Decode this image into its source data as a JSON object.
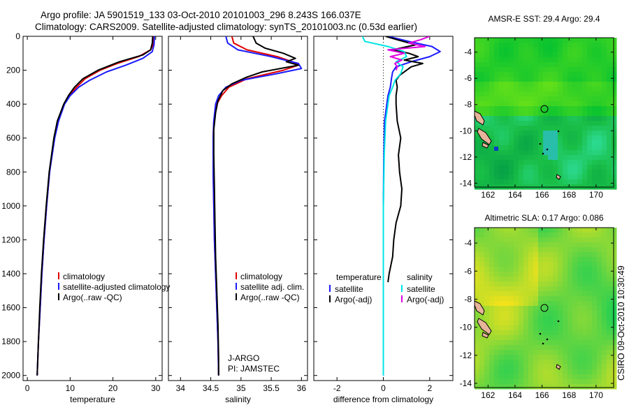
{
  "header": {
    "line1": "Argo profile: JA 5901519_133 03-Oct-2010 20101003_296 8.243S 166.037E",
    "line2": "Climatology: CARS2009. Satellite-adjusted climatology: synTS_20101003.nc (0.53d earlier)"
  },
  "side_label": "CSIRO 09-Oct-2010 10:30:49",
  "colors": {
    "climatology": "#e00000",
    "satellite": "#1a1aff",
    "argo": "#000000",
    "cyan": "#00e5e5",
    "magenta": "#e000e0",
    "land": "#e6b49a"
  },
  "chart_data": [
    {
      "id": "temperature",
      "type": "line",
      "xlabel": "temperature",
      "ylabel": "",
      "xlim": [
        -1,
        31.5
      ],
      "ylim": [
        0,
        2030
      ],
      "xticks": [
        0,
        10,
        20,
        30
      ],
      "yticks": [
        0,
        200,
        400,
        600,
        800,
        1000,
        1200,
        1400,
        1600,
        1800,
        2000
      ],
      "series": [
        {
          "name": "climatology",
          "color": "#e00000",
          "depth": [
            0,
            50,
            80,
            120,
            160,
            200,
            250,
            300,
            350,
            400,
            500,
            600,
            800,
            1000,
            1200,
            1400,
            1600,
            1800,
            2000
          ],
          "values": [
            29.5,
            29.4,
            28.8,
            26,
            21,
            17,
            13.5,
            11.5,
            9.8,
            8.6,
            7.2,
            6.3,
            5.2,
            4.5,
            3.9,
            3.4,
            3,
            2.6,
            2.3
          ]
        },
        {
          "name": "satellite-adjusted climatology",
          "color": "#1a1aff",
          "depth": [
            0,
            50,
            90,
            130,
            170,
            210,
            260,
            300,
            350,
            400,
            500,
            600,
            800,
            1000,
            1200,
            1400,
            1600,
            1800,
            2000
          ],
          "values": [
            29.7,
            29.6,
            29.2,
            27,
            23,
            18.5,
            14.5,
            12,
            10,
            8.7,
            7.3,
            6.4,
            5.2,
            4.5,
            3.9,
            3.4,
            3,
            2.6,
            2.3
          ]
        },
        {
          "name": "Argo(..raw -QC)",
          "color": "#000000",
          "depth": [
            0,
            40,
            80,
            110,
            150,
            200,
            250,
            300,
            350,
            400,
            500,
            600,
            800,
            1000,
            1200,
            1400,
            1600,
            1800,
            2000
          ],
          "values": [
            29.3,
            29.2,
            28.8,
            27,
            21.5,
            16.5,
            13,
            11,
            9.6,
            8.5,
            7,
            6.2,
            5.1,
            4.4,
            3.8,
            3.3,
            2.9,
            2.6,
            2.3
          ]
        }
      ],
      "legend": [
        "climatology",
        "satellite-adjusted climatology",
        "Argo(..raw -QC)"
      ]
    },
    {
      "id": "salinity",
      "type": "line",
      "xlabel": "salinity",
      "ylabel": "",
      "xlim": [
        33.8,
        36.1
      ],
      "ylim": [
        0,
        2030
      ],
      "xticks": [
        34,
        34.5,
        35,
        35.5,
        36
      ],
      "xticklabels": [
        "34",
        "34.5",
        "35",
        "35.5",
        "36"
      ],
      "annotation": [
        "J-ARGO",
        "PI: JAMSTEC"
      ],
      "series": [
        {
          "name": "climatology",
          "color": "#e00000",
          "depth": [
            0,
            40,
            80,
            120,
            150,
            170,
            200,
            250,
            300,
            350,
            400,
            500,
            600,
            800,
            1000,
            1200,
            1400,
            1600,
            1800,
            2000
          ],
          "values": [
            34.85,
            34.88,
            35.1,
            35.6,
            35.85,
            35.95,
            35.7,
            35.1,
            34.8,
            34.68,
            34.6,
            34.55,
            34.54,
            34.54,
            34.55,
            34.56,
            34.58,
            34.6,
            34.62,
            34.63
          ]
        },
        {
          "name": "satellite adj. clim.",
          "color": "#1a1aff",
          "depth": [
            0,
            40,
            80,
            120,
            160,
            190,
            220,
            260,
            300,
            350,
            400,
            500,
            600,
            800,
            1000,
            1200,
            1400,
            1600,
            1800,
            2000
          ],
          "values": [
            34.75,
            34.78,
            34.95,
            35.5,
            35.95,
            36.0,
            35.6,
            35.0,
            34.75,
            34.63,
            34.58,
            34.55,
            34.54,
            34.54,
            34.55,
            34.56,
            34.58,
            34.6,
            34.62,
            34.63
          ]
        },
        {
          "name": "Argo(..raw -QC)",
          "color": "#000000",
          "depth": [
            0,
            40,
            70,
            100,
            130,
            150,
            170,
            190,
            210,
            240,
            280,
            320,
            380,
            450,
            550,
            700,
            900,
            1100,
            1300,
            1500,
            1700,
            1900,
            2000
          ],
          "values": [
            35.2,
            35.25,
            35.4,
            35.7,
            35.9,
            35.75,
            35.95,
            35.65,
            35.35,
            35.1,
            34.85,
            34.7,
            34.62,
            34.58,
            34.55,
            34.55,
            34.56,
            34.57,
            34.58,
            34.6,
            34.62,
            34.63,
            34.63
          ]
        }
      ],
      "legend": [
        "climatology",
        "satellite adj. clim.",
        "Argo(..raw -QC)"
      ]
    },
    {
      "id": "difference",
      "type": "line",
      "xlabel": "difference from climatology",
      "ylabel": "",
      "xlim": [
        -3,
        3
      ],
      "ylim": [
        0,
        2030
      ],
      "xticks": [
        -2,
        0,
        2
      ],
      "legend_titles": [
        "temperature",
        "salinity"
      ],
      "series": [
        {
          "name": "temperature satellite",
          "color": "#1a1aff",
          "depth": [
            0,
            30,
            60,
            90,
            120,
            150,
            180,
            210,
            250,
            300,
            350,
            400,
            500,
            700,
            1000,
            1500,
            2000
          ],
          "values": [
            0.2,
            1.1,
            2.1,
            2.45,
            2.0,
            1.2,
            0.55,
            0.4,
            0.35,
            0.3,
            0.2,
            0.15,
            0.05,
            0.02,
            0.0,
            0.0,
            0.0
          ]
        },
        {
          "name": "temperature Argo(-adj)",
          "color": "#000000",
          "depth": [
            0,
            20,
            50,
            80,
            100,
            120,
            140,
            160,
            180,
            200,
            230,
            260,
            300,
            350,
            400,
            500,
            600,
            700,
            800,
            900,
            1000,
            1100,
            1200,
            1300,
            1400,
            1450
          ],
          "values": [
            0.1,
            0.6,
            1.4,
            0.4,
            1.1,
            1.5,
            0.9,
            1.7,
            1.2,
            1.0,
            0.7,
            0.55,
            0.6,
            0.55,
            0.55,
            0.6,
            0.75,
            0.65,
            0.7,
            0.8,
            0.75,
            0.55,
            0.45,
            0.4,
            0.25,
            0.2
          ]
        },
        {
          "name": "salinity satellite",
          "color": "#00e5e5",
          "depth": [
            0,
            30,
            60,
            90,
            120,
            150,
            180,
            220,
            260,
            300,
            350,
            400,
            500,
            700,
            1000,
            1500,
            2000
          ],
          "values": [
            -0.9,
            -0.8,
            0.2,
            0.9,
            1.0,
            0.55,
            0.85,
            0.75,
            0.5,
            0.4,
            0.25,
            0.2,
            0.1,
            0.04,
            0.0,
            0.0,
            0.0
          ]
        },
        {
          "name": "salinity Argo(-adj)",
          "color": "#e000e0",
          "depth": [
            0,
            20,
            40,
            60,
            80,
            100,
            120,
            140,
            160,
            180,
            200
          ],
          "values": [
            2.0,
            1.6,
            1.1,
            1.8,
            0.2,
            0.9,
            0.3,
            0.8,
            0.5,
            0.6,
            0.55
          ]
        }
      ],
      "legend": [
        "satellite",
        "Argo(-adj)",
        "satellite",
        "Argo(-adj)"
      ]
    }
  ],
  "maps": [
    {
      "id": "sst",
      "title": "AMSR-E SST: 29.4 Argo: 29.4",
      "xticks": [
        "162",
        "164",
        "166",
        "168",
        "170"
      ],
      "yticks": [
        "-4",
        "-6",
        "-8",
        "-10",
        "-12",
        "-14"
      ]
    },
    {
      "id": "sla",
      "title": "Altimetric SLA: 0.17 Argo: 0.086",
      "xticks": [
        "162",
        "164",
        "166",
        "168",
        "170"
      ],
      "yticks": [
        "-4",
        "-6",
        "-8",
        "-10",
        "-12",
        "-14"
      ]
    }
  ]
}
